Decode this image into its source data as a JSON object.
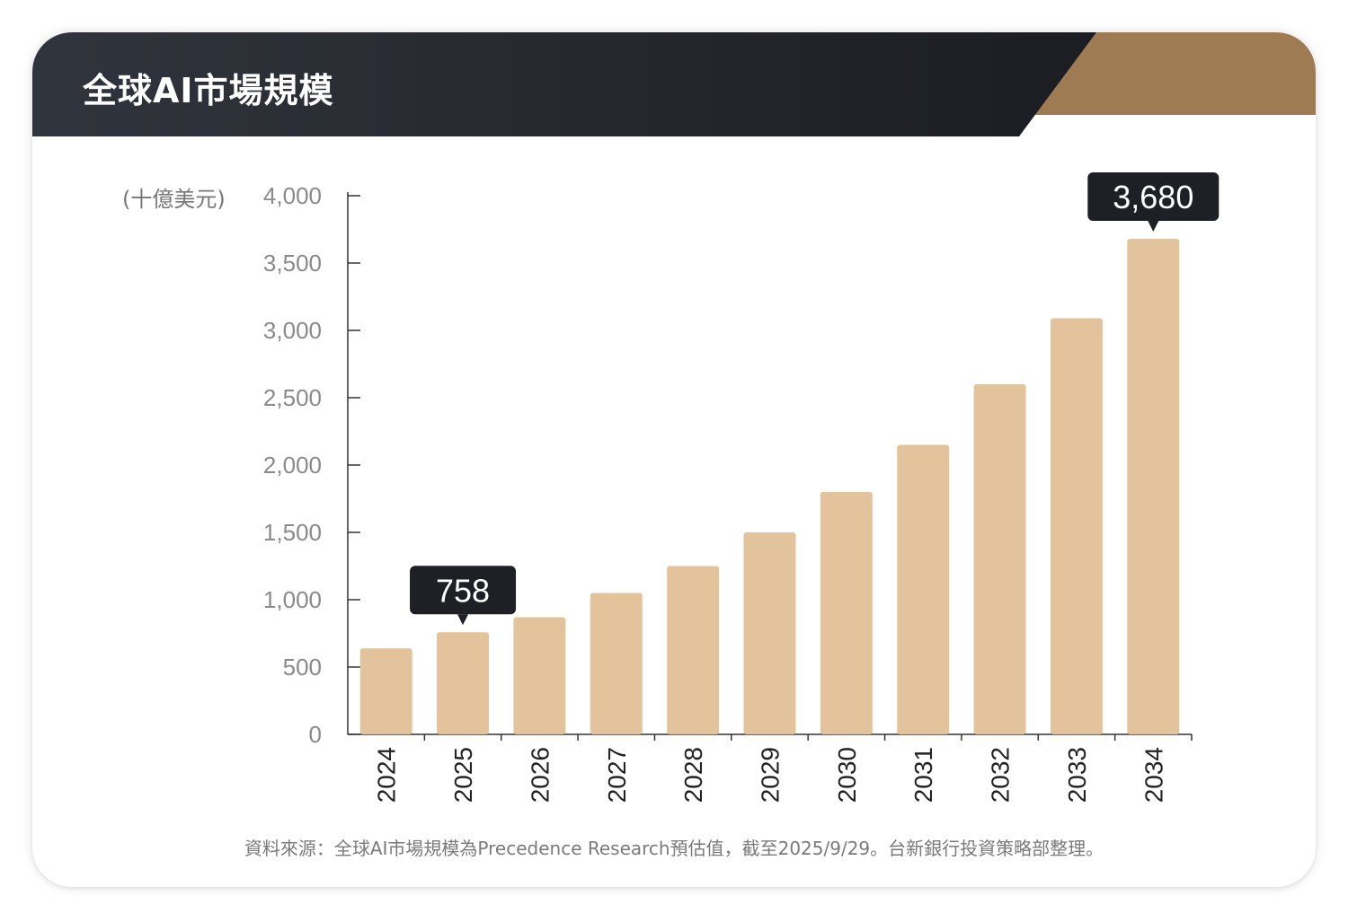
{
  "header": {
    "title": "全球AI市場規模"
  },
  "colors": {
    "header_dark": "#23262d",
    "header_accent": "#9e7b52",
    "bar": "#e3c39b",
    "axis": "#333333",
    "tick_text": "#8a8a8a",
    "callout_bg": "#1e2026",
    "callout_text": "#ffffff"
  },
  "chart_data": {
    "type": "bar",
    "title": "全球AI市場規模",
    "ylabel": "(十億美元)",
    "xlabel": "",
    "ylim": [
      0,
      4000
    ],
    "yticks": [
      0,
      500,
      1000,
      1500,
      2000,
      2500,
      3000,
      3500,
      4000
    ],
    "ytick_labels": [
      "0",
      "500",
      "1,000",
      "1,500",
      "2,000",
      "2,500",
      "3,000",
      "3,500",
      "4,000"
    ],
    "categories": [
      "2024",
      "2025",
      "2026",
      "2027",
      "2028",
      "2029",
      "2030",
      "2031",
      "2032",
      "2033",
      "2034"
    ],
    "values": [
      638,
      758,
      870,
      1050,
      1250,
      1500,
      1800,
      2150,
      2600,
      3090,
      3680
    ],
    "annotations": [
      {
        "category": "2025",
        "label": "758"
      },
      {
        "category": "2034",
        "label": "3,680"
      }
    ],
    "grid": false
  },
  "footer": {
    "source": "資料來源：全球AI市場規模為Precedence Research預估值，截至2025/9/29。台新銀行投資策略部整理。"
  }
}
